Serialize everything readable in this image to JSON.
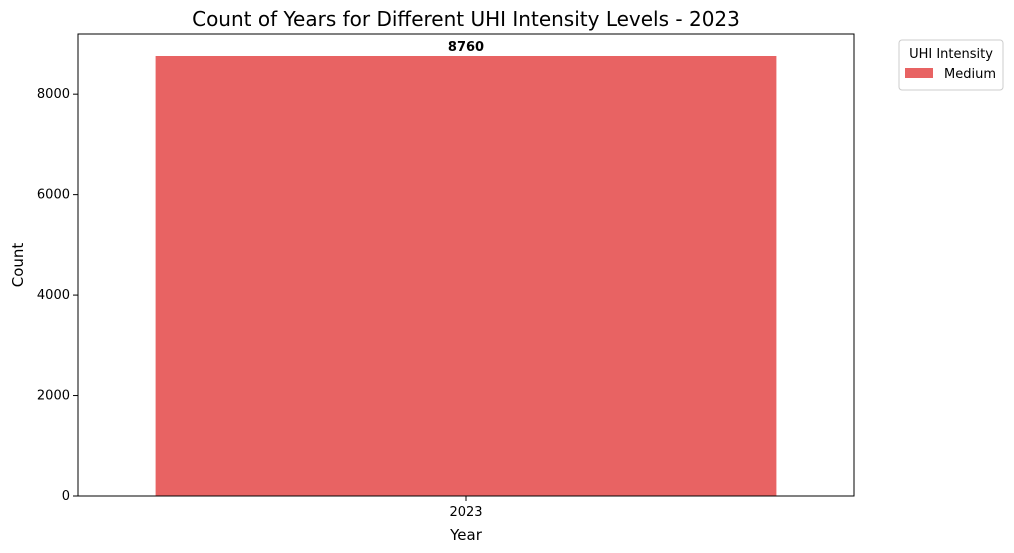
{
  "chart_data": {
    "type": "bar",
    "title": "Count of Years for Different UHI Intensity Levels - 2023",
    "xlabel": "Year",
    "ylabel": "Count",
    "categories": [
      "2023"
    ],
    "series": [
      {
        "name": "Medium",
        "values": [
          8760
        ],
        "color": "#e86363"
      }
    ],
    "data_labels": [
      "8760"
    ],
    "ylim": [
      0,
      9198
    ],
    "yticks": [
      0,
      2000,
      4000,
      6000,
      8000
    ],
    "grid": false,
    "legend": {
      "title": "UHI Intensity",
      "placement": "outside-top-right"
    }
  }
}
